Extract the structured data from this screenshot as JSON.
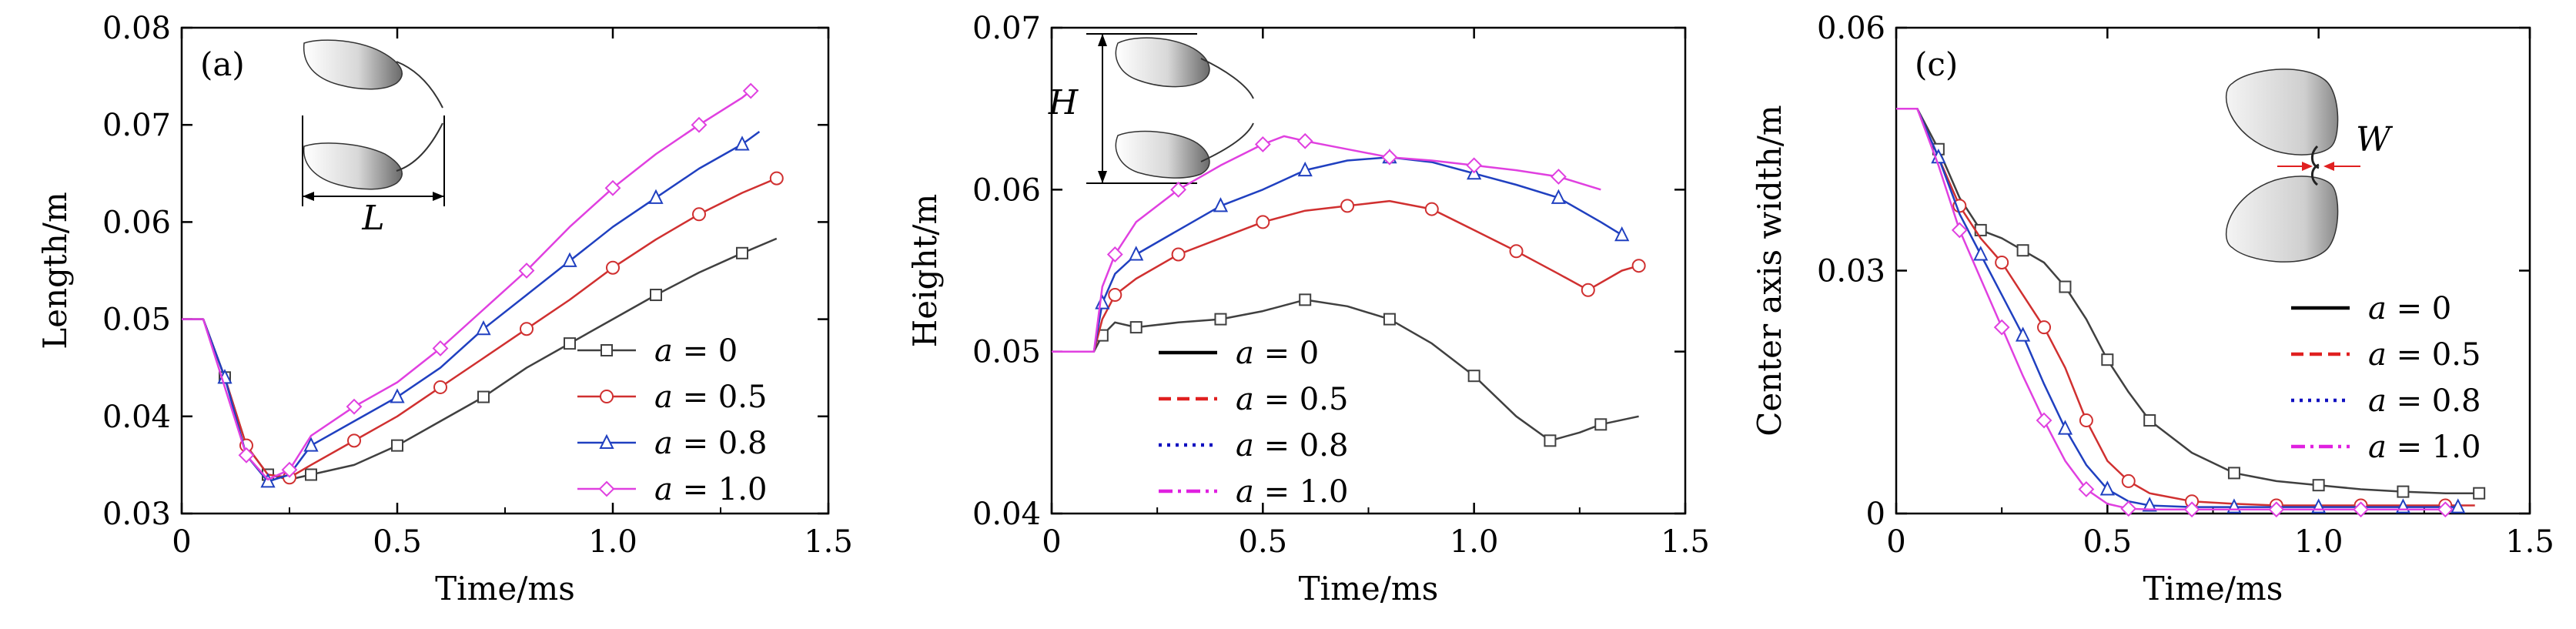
{
  "chart_data": [
    {
      "type": "line",
      "panel_label": "(a)",
      "xlabel": "Time/ms",
      "ylabel": "Length/m",
      "xlim": [
        0,
        1.5
      ],
      "ylim": [
        0.03,
        0.08
      ],
      "xticks": [
        "0",
        "0.5",
        "1.0",
        "1.5"
      ],
      "yticks": [
        "0.03",
        "0.04",
        "0.05",
        "0.06",
        "0.07",
        "0.08"
      ],
      "inset_label": "L",
      "legend_position": "bottom-right",
      "series": [
        {
          "name": "a = 0",
          "color": "#404040",
          "marker": "square",
          "points": [
            [
              0,
              0.05
            ],
            [
              0.05,
              0.05
            ],
            [
              0.1,
              0.044
            ],
            [
              0.15,
              0.037
            ],
            [
              0.2,
              0.034
            ],
            [
              0.25,
              0.0335
            ],
            [
              0.3,
              0.034
            ],
            [
              0.4,
              0.035
            ],
            [
              0.5,
              0.037
            ],
            [
              0.6,
              0.0395
            ],
            [
              0.7,
              0.042
            ],
            [
              0.8,
              0.045
            ],
            [
              0.9,
              0.0475
            ],
            [
              1.0,
              0.05
            ],
            [
              1.1,
              0.0525
            ],
            [
              1.2,
              0.0548
            ],
            [
              1.3,
              0.0568
            ],
            [
              1.38,
              0.0583
            ]
          ]
        },
        {
          "name": "a = 0.5",
          "color": "#d03030",
          "marker": "circle",
          "points": [
            [
              0,
              0.05
            ],
            [
              0.05,
              0.05
            ],
            [
              0.1,
              0.044
            ],
            [
              0.15,
              0.037
            ],
            [
              0.2,
              0.034
            ],
            [
              0.25,
              0.0337
            ],
            [
              0.3,
              0.035
            ],
            [
              0.4,
              0.0375
            ],
            [
              0.5,
              0.04
            ],
            [
              0.6,
              0.043
            ],
            [
              0.7,
              0.046
            ],
            [
              0.8,
              0.049
            ],
            [
              0.9,
              0.052
            ],
            [
              1.0,
              0.0553
            ],
            [
              1.1,
              0.0582
            ],
            [
              1.2,
              0.0608
            ],
            [
              1.3,
              0.063
            ],
            [
              1.38,
              0.0645
            ]
          ]
        },
        {
          "name": "a = 0.8",
          "color": "#2040c0",
          "marker": "triangle",
          "points": [
            [
              0,
              0.05
            ],
            [
              0.05,
              0.05
            ],
            [
              0.1,
              0.044
            ],
            [
              0.15,
              0.036
            ],
            [
              0.2,
              0.0333
            ],
            [
              0.25,
              0.034
            ],
            [
              0.3,
              0.037
            ],
            [
              0.4,
              0.0395
            ],
            [
              0.5,
              0.042
            ],
            [
              0.6,
              0.045
            ],
            [
              0.7,
              0.049
            ],
            [
              0.8,
              0.0525
            ],
            [
              0.9,
              0.056
            ],
            [
              1.0,
              0.0595
            ],
            [
              1.1,
              0.0625
            ],
            [
              1.2,
              0.0655
            ],
            [
              1.3,
              0.068
            ],
            [
              1.34,
              0.0693
            ]
          ]
        },
        {
          "name": "a = 1.0",
          "color": "#e040e0",
          "marker": "diamond",
          "points": [
            [
              0,
              0.05
            ],
            [
              0.05,
              0.05
            ],
            [
              0.1,
              0.043
            ],
            [
              0.15,
              0.036
            ],
            [
              0.2,
              0.0335
            ],
            [
              0.25,
              0.0345
            ],
            [
              0.3,
              0.038
            ],
            [
              0.4,
              0.041
            ],
            [
              0.5,
              0.0435
            ],
            [
              0.6,
              0.047
            ],
            [
              0.7,
              0.051
            ],
            [
              0.8,
              0.055
            ],
            [
              0.9,
              0.0595
            ],
            [
              1.0,
              0.0635
            ],
            [
              1.1,
              0.067
            ],
            [
              1.2,
              0.07
            ],
            [
              1.3,
              0.0728
            ],
            [
              1.32,
              0.0735
            ]
          ]
        }
      ]
    },
    {
      "type": "line",
      "panel_label": "",
      "xlabel": "Time/ms",
      "ylabel": "Height/m",
      "xlim": [
        0,
        1.5
      ],
      "ylim": [
        0.04,
        0.07
      ],
      "xticks": [
        "0",
        "0.5",
        "1.0",
        "1.5"
      ],
      "yticks": [
        "0.04",
        "0.05",
        "0.06",
        "0.07"
      ],
      "inset_label": "H",
      "legend_position": "bottom-left",
      "series": [
        {
          "name": "a = 0",
          "color": "#404040",
          "marker": "square",
          "legend_style": "solid",
          "legend_color": "#000000",
          "points": [
            [
              0,
              0.05
            ],
            [
              0.1,
              0.05
            ],
            [
              0.12,
              0.051
            ],
            [
              0.15,
              0.0518
            ],
            [
              0.2,
              0.0515
            ],
            [
              0.3,
              0.0518
            ],
            [
              0.4,
              0.052
            ],
            [
              0.5,
              0.0525
            ],
            [
              0.6,
              0.0532
            ],
            [
              0.7,
              0.0528
            ],
            [
              0.8,
              0.052
            ],
            [
              0.9,
              0.0505
            ],
            [
              1.0,
              0.0485
            ],
            [
              1.1,
              0.046
            ],
            [
              1.18,
              0.0445
            ],
            [
              1.25,
              0.045
            ],
            [
              1.3,
              0.0455
            ],
            [
              1.39,
              0.046
            ]
          ]
        },
        {
          "name": "a = 0.5",
          "color": "#d03030",
          "marker": "circle",
          "legend_style": "dashed",
          "legend_color": "#e02020",
          "points": [
            [
              0,
              0.05
            ],
            [
              0.1,
              0.05
            ],
            [
              0.12,
              0.052
            ],
            [
              0.15,
              0.0535
            ],
            [
              0.2,
              0.0545
            ],
            [
              0.3,
              0.056
            ],
            [
              0.4,
              0.057
            ],
            [
              0.5,
              0.058
            ],
            [
              0.6,
              0.0587
            ],
            [
              0.7,
              0.059
            ],
            [
              0.8,
              0.0593
            ],
            [
              0.9,
              0.0588
            ],
            [
              1.0,
              0.0575
            ],
            [
              1.1,
              0.0562
            ],
            [
              1.2,
              0.0548
            ],
            [
              1.27,
              0.0538
            ],
            [
              1.35,
              0.055
            ],
            [
              1.39,
              0.0553
            ]
          ]
        },
        {
          "name": "a = 0.8",
          "color": "#2040c0",
          "marker": "triangle",
          "legend_style": "dotted",
          "legend_color": "#1010c0",
          "points": [
            [
              0,
              0.05
            ],
            [
              0.1,
              0.05
            ],
            [
              0.12,
              0.053
            ],
            [
              0.15,
              0.0548
            ],
            [
              0.2,
              0.056
            ],
            [
              0.3,
              0.0575
            ],
            [
              0.4,
              0.059
            ],
            [
              0.5,
              0.06
            ],
            [
              0.6,
              0.0612
            ],
            [
              0.7,
              0.0618
            ],
            [
              0.8,
              0.062
            ],
            [
              0.9,
              0.0617
            ],
            [
              1.0,
              0.061
            ],
            [
              1.1,
              0.0603
            ],
            [
              1.2,
              0.0595
            ],
            [
              1.3,
              0.058
            ],
            [
              1.35,
              0.0572
            ]
          ]
        },
        {
          "name": "a = 1.0",
          "color": "#e040e0",
          "marker": "diamond",
          "legend_style": "dashdot",
          "legend_color": "#e020e0",
          "points": [
            [
              0,
              0.05
            ],
            [
              0.1,
              0.05
            ],
            [
              0.12,
              0.054
            ],
            [
              0.15,
              0.056
            ],
            [
              0.2,
              0.058
            ],
            [
              0.3,
              0.06
            ],
            [
              0.4,
              0.0615
            ],
            [
              0.5,
              0.0628
            ],
            [
              0.55,
              0.0633
            ],
            [
              0.6,
              0.063
            ],
            [
              0.7,
              0.0625
            ],
            [
              0.8,
              0.062
            ],
            [
              0.9,
              0.0618
            ],
            [
              1.0,
              0.0615
            ],
            [
              1.1,
              0.0612
            ],
            [
              1.2,
              0.0608
            ],
            [
              1.3,
              0.06
            ]
          ]
        }
      ]
    },
    {
      "type": "line",
      "panel_label": "(c)",
      "xlabel": "Time/ms",
      "ylabel": "Center axis width/m",
      "xlim": [
        0,
        1.5
      ],
      "ylim": [
        0,
        0.06
      ],
      "xticks": [
        "0",
        "0.5",
        "1.0",
        "1.5"
      ],
      "yticks": [
        "0",
        "0.03",
        "0.06"
      ],
      "inset_label": "W",
      "legend_position": "right",
      "series": [
        {
          "name": "a = 0",
          "color": "#404040",
          "marker": "square",
          "legend_style": "solid",
          "legend_color": "#000000",
          "points": [
            [
              0,
              0.05
            ],
            [
              0.05,
              0.05
            ],
            [
              0.1,
              0.045
            ],
            [
              0.15,
              0.039
            ],
            [
              0.2,
              0.035
            ],
            [
              0.25,
              0.034
            ],
            [
              0.3,
              0.0325
            ],
            [
              0.35,
              0.031
            ],
            [
              0.4,
              0.028
            ],
            [
              0.45,
              0.024
            ],
            [
              0.5,
              0.019
            ],
            [
              0.55,
              0.015
            ],
            [
              0.6,
              0.0115
            ],
            [
              0.7,
              0.0075
            ],
            [
              0.8,
              0.005
            ],
            [
              0.9,
              0.004
            ],
            [
              1.0,
              0.0035
            ],
            [
              1.1,
              0.003
            ],
            [
              1.2,
              0.0027
            ],
            [
              1.3,
              0.0025
            ],
            [
              1.38,
              0.0025
            ]
          ]
        },
        {
          "name": "a = 0.5",
          "color": "#d03030",
          "marker": "circle",
          "legend_style": "dashed",
          "legend_color": "#e02020",
          "points": [
            [
              0,
              0.05
            ],
            [
              0.05,
              0.05
            ],
            [
              0.1,
              0.044
            ],
            [
              0.15,
              0.038
            ],
            [
              0.2,
              0.034
            ],
            [
              0.25,
              0.031
            ],
            [
              0.3,
              0.027
            ],
            [
              0.35,
              0.023
            ],
            [
              0.4,
              0.018
            ],
            [
              0.45,
              0.0115
            ],
            [
              0.5,
              0.0065
            ],
            [
              0.55,
              0.004
            ],
            [
              0.6,
              0.0025
            ],
            [
              0.7,
              0.0015
            ],
            [
              0.8,
              0.0012
            ],
            [
              0.9,
              0.001
            ],
            [
              1.0,
              0.001
            ],
            [
              1.1,
              0.001
            ],
            [
              1.2,
              0.001
            ],
            [
              1.3,
              0.001
            ],
            [
              1.37,
              0.001
            ]
          ]
        },
        {
          "name": "a = 0.8",
          "color": "#2040c0",
          "marker": "triangle",
          "legend_style": "dotted",
          "legend_color": "#1010c0",
          "points": [
            [
              0,
              0.05
            ],
            [
              0.05,
              0.05
            ],
            [
              0.1,
              0.044
            ],
            [
              0.15,
              0.037
            ],
            [
              0.2,
              0.032
            ],
            [
              0.25,
              0.027
            ],
            [
              0.3,
              0.022
            ],
            [
              0.35,
              0.016
            ],
            [
              0.4,
              0.0105
            ],
            [
              0.45,
              0.006
            ],
            [
              0.5,
              0.003
            ],
            [
              0.55,
              0.0015
            ],
            [
              0.6,
              0.001
            ],
            [
              0.7,
              0.0008
            ],
            [
              0.8,
              0.0008
            ],
            [
              0.9,
              0.0008
            ],
            [
              1.0,
              0.0008
            ],
            [
              1.1,
              0.0008
            ],
            [
              1.2,
              0.0008
            ],
            [
              1.3,
              0.0008
            ],
            [
              1.33,
              0.0008
            ]
          ]
        },
        {
          "name": "a = 1.0",
          "color": "#e040e0",
          "marker": "diamond",
          "legend_style": "dashdot",
          "legend_color": "#e020e0",
          "points": [
            [
              0,
              0.05
            ],
            [
              0.05,
              0.05
            ],
            [
              0.1,
              0.043
            ],
            [
              0.15,
              0.035
            ],
            [
              0.2,
              0.029
            ],
            [
              0.25,
              0.023
            ],
            [
              0.3,
              0.017
            ],
            [
              0.35,
              0.0115
            ],
            [
              0.4,
              0.0065
            ],
            [
              0.45,
              0.003
            ],
            [
              0.5,
              0.0012
            ],
            [
              0.55,
              0.0006
            ],
            [
              0.6,
              0.0005
            ],
            [
              0.7,
              0.0005
            ],
            [
              0.8,
              0.0005
            ],
            [
              0.9,
              0.0005
            ],
            [
              1.0,
              0.0005
            ],
            [
              1.1,
              0.0005
            ],
            [
              1.2,
              0.0005
            ],
            [
              1.3,
              0.0005
            ]
          ]
        }
      ]
    }
  ]
}
